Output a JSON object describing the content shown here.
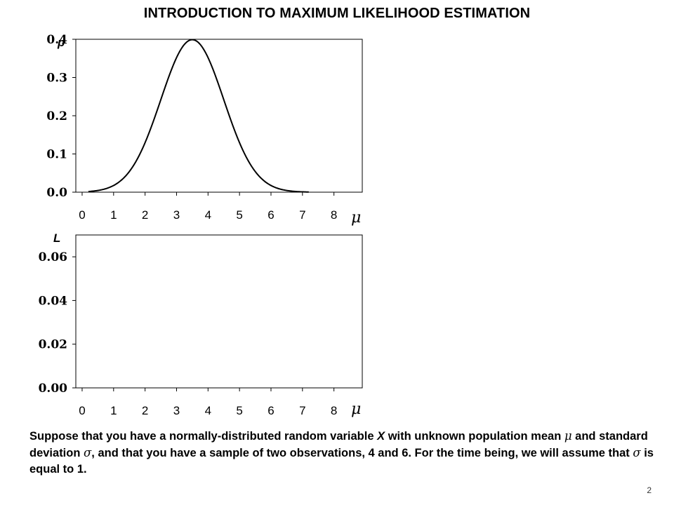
{
  "title": "INTRODUCTION TO MAXIMUM LIKELIHOOD ESTIMATION",
  "page_number": "2",
  "text": {
    "part1": "Suppose that you have a normally-distributed random variable ",
    "var_x": "X",
    "part2": " with unknown population mean ",
    "sym_mu": "μ",
    "part3": " and standard deviation ",
    "sym_sigma": "σ",
    "part4": ", and that you have a sample of two observations, 4 and 6. For the time being, we will assume that ",
    "sym_sigma2": "σ",
    "part5": " is equal to 1."
  },
  "chart_data": [
    {
      "type": "line",
      "title": "",
      "ylabel": "p",
      "xlabel": "μ",
      "xlim": [
        -0.2,
        8.9
      ],
      "ylim": [
        0,
        0.4
      ],
      "x_ticks": [
        "0",
        "1",
        "2",
        "3",
        "4",
        "5",
        "6",
        "7",
        "8"
      ],
      "y_ticks": [
        "0.0",
        "0.1",
        "0.2",
        "0.3",
        "0.4"
      ],
      "grid": false,
      "curve": {
        "kind": "normal_density",
        "mean": 3.5,
        "sd": 1,
        "x_range": [
          0.2,
          7.2
        ],
        "color": "#000000"
      }
    },
    {
      "type": "line",
      "title": "",
      "ylabel": "L",
      "xlabel": "μ",
      "xlim": [
        -0.2,
        8.9
      ],
      "ylim": [
        0,
        0.07
      ],
      "x_ticks": [
        "0",
        "1",
        "2",
        "3",
        "4",
        "5",
        "6",
        "7",
        "8"
      ],
      "y_ticks": [
        "0.00",
        "0.02",
        "0.04",
        "0.06"
      ],
      "grid": false,
      "series": []
    }
  ]
}
